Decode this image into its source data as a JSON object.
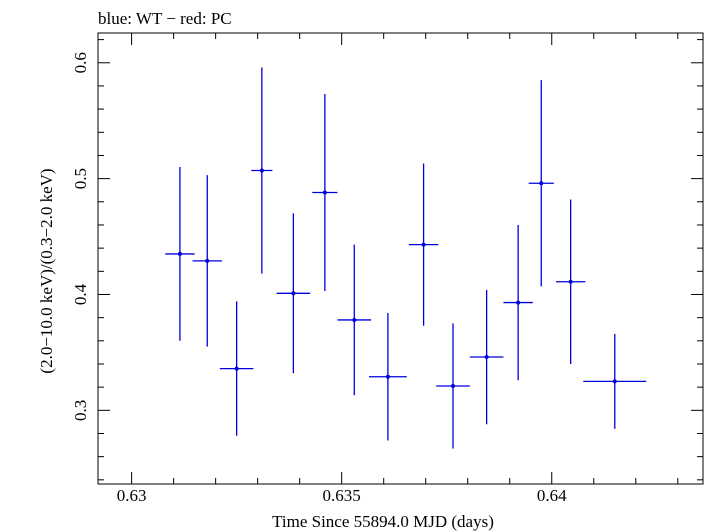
{
  "chart_data": {
    "type": "scatter",
    "title": "blue: WT − red: PC",
    "xlabel": "Time Since 55894.0 MJD (days)",
    "ylabel": "(2.0−10.0 keV)/(0.3−2.0 keV)",
    "xlim": [
      0.6292,
      0.6436
    ],
    "ylim": [
      0.2364,
      0.6257
    ],
    "x_ticks": [
      0.63,
      0.635,
      0.64
    ],
    "x_tick_labels": [
      "0.63",
      "0.635",
      "0.64"
    ],
    "y_ticks": [
      0.3,
      0.4,
      0.5,
      0.6
    ],
    "y_tick_labels": [
      "0.3",
      "0.4",
      "0.5",
      "0.6"
    ],
    "grid": false,
    "series": [
      {
        "color": "#0000dd",
        "points": [
          {
            "x": 0.63115,
            "xerr": 0.00035,
            "y": 0.435,
            "yerr_low": 0.075,
            "yerr_high": 0.075
          },
          {
            "x": 0.6318,
            "xerr": 0.00035,
            "y": 0.429,
            "yerr_low": 0.074,
            "yerr_high": 0.074
          },
          {
            "x": 0.6325,
            "xerr": 0.0004,
            "y": 0.336,
            "yerr_low": 0.058,
            "yerr_high": 0.058
          },
          {
            "x": 0.6331,
            "xerr": 0.00025,
            "y": 0.507,
            "yerr_low": 0.089,
            "yerr_high": 0.089
          },
          {
            "x": 0.63385,
            "xerr": 0.0004,
            "y": 0.401,
            "yerr_low": 0.069,
            "yerr_high": 0.069
          },
          {
            "x": 0.6346,
            "xerr": 0.0003,
            "y": 0.488,
            "yerr_low": 0.085,
            "yerr_high": 0.085
          },
          {
            "x": 0.6353,
            "xerr": 0.0004,
            "y": 0.378,
            "yerr_low": 0.065,
            "yerr_high": 0.065
          },
          {
            "x": 0.6361,
            "xerr": 0.00045,
            "y": 0.329,
            "yerr_low": 0.055,
            "yerr_high": 0.055
          },
          {
            "x": 0.63695,
            "xerr": 0.00035,
            "y": 0.443,
            "yerr_low": 0.07,
            "yerr_high": 0.07
          },
          {
            "x": 0.63765,
            "xerr": 0.0004,
            "y": 0.321,
            "yerr_low": 0.054,
            "yerr_high": 0.054
          },
          {
            "x": 0.63845,
            "xerr": 0.0004,
            "y": 0.346,
            "yerr_low": 0.058,
            "yerr_high": 0.058
          },
          {
            "x": 0.6392,
            "xerr": 0.00035,
            "y": 0.393,
            "yerr_low": 0.067,
            "yerr_high": 0.067
          },
          {
            "x": 0.63975,
            "xerr": 0.0003,
            "y": 0.496,
            "yerr_low": 0.089,
            "yerr_high": 0.089
          },
          {
            "x": 0.64045,
            "xerr": 0.00035,
            "y": 0.411,
            "yerr_low": 0.071,
            "yerr_high": 0.071
          },
          {
            "x": 0.6415,
            "xerr": 0.00075,
            "y": 0.325,
            "yerr_low": 0.041,
            "yerr_high": 0.041
          }
        ]
      }
    ]
  }
}
